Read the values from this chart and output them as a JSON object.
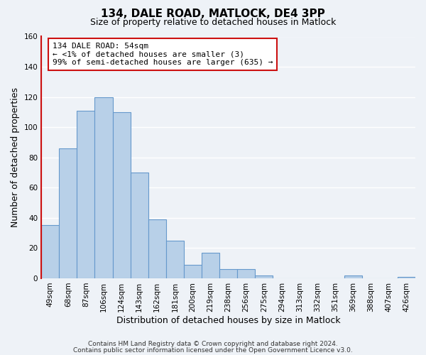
{
  "title": "134, DALE ROAD, MATLOCK, DE4 3PP",
  "subtitle": "Size of property relative to detached houses in Matlock",
  "xlabel": "Distribution of detached houses by size in Matlock",
  "ylabel": "Number of detached properties",
  "bar_color": "#b8d0e8",
  "bar_edge_color": "#6699cc",
  "bins": [
    "49sqm",
    "68sqm",
    "87sqm",
    "106sqm",
    "124sqm",
    "143sqm",
    "162sqm",
    "181sqm",
    "200sqm",
    "219sqm",
    "238sqm",
    "256sqm",
    "275sqm",
    "294sqm",
    "313sqm",
    "332sqm",
    "351sqm",
    "369sqm",
    "388sqm",
    "407sqm",
    "426sqm"
  ],
  "values": [
    35,
    86,
    111,
    120,
    110,
    70,
    39,
    25,
    9,
    17,
    6,
    6,
    2,
    0,
    0,
    0,
    0,
    2,
    0,
    0,
    1
  ],
  "ylim": [
    0,
    160
  ],
  "yticks": [
    0,
    20,
    40,
    60,
    80,
    100,
    120,
    140,
    160
  ],
  "annotation_title": "134 DALE ROAD: 54sqm",
  "annotation_line1": "← <1% of detached houses are smaller (3)",
  "annotation_line2": "99% of semi-detached houses are larger (635) →",
  "footnote1": "Contains HM Land Registry data © Crown copyright and database right 2024.",
  "footnote2": "Contains public sector information licensed under the Open Government Licence v3.0.",
  "bg_color": "#eef2f7",
  "grid_color": "#ffffff",
  "red_color": "#cc1111",
  "title_fontsize": 11,
  "subtitle_fontsize": 9,
  "axis_label_fontsize": 9,
  "tick_fontsize": 7.5,
  "annotation_fontsize": 8,
  "footnote_fontsize": 6.5
}
